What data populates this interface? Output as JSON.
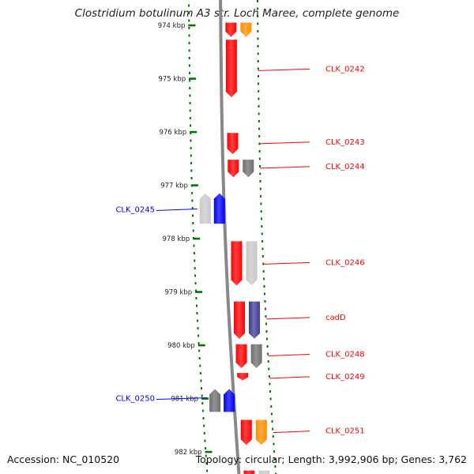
{
  "title": "Clostridium botulinum A3 str. Loch Maree, complete genome",
  "footer": {
    "accession": "Accession: NC_010520",
    "summary": "Topology: circular; Length: 3,992,906 bp; Genes: 3,762"
  },
  "colors": {
    "red": "#ff0000",
    "orange": "#ff8c00",
    "gray": "#6e6e6e",
    "light_gray": "#c8c8c8",
    "blue": "#0000ff",
    "navy": "#3c3c96",
    "tick_green": "#007700",
    "backbone": "#888888"
  },
  "view": {
    "start_kbp": 973.95,
    "end_kbp": 982.45
  },
  "ticks": [
    {
      "kbp": 974,
      "label": "974 kbp"
    },
    {
      "kbp": 975,
      "label": "975 kbp"
    },
    {
      "kbp": 976,
      "label": "976 kbp"
    },
    {
      "kbp": 977,
      "label": "977 kbp"
    },
    {
      "kbp": 978,
      "label": "978 kbp"
    },
    {
      "kbp": 979,
      "label": "979 kbp"
    },
    {
      "kbp": 980,
      "label": "980 kbp"
    },
    {
      "kbp": 981,
      "label": "981 kbp"
    },
    {
      "kbp": 982,
      "label": "982 kbp"
    }
  ],
  "features": [
    {
      "track": "fwd_inner",
      "start": 973.95,
      "end": 974.22,
      "color": "red"
    },
    {
      "track": "fwd_outer",
      "start": 973.95,
      "end": 974.22,
      "color": "orange"
    },
    {
      "track": "fwd_inner",
      "start": 974.27,
      "end": 975.35,
      "color": "red"
    },
    {
      "track": "fwd_inner",
      "start": 976.02,
      "end": 976.42,
      "color": "red"
    },
    {
      "track": "fwd_inner",
      "start": 976.52,
      "end": 976.85,
      "color": "red"
    },
    {
      "track": "fwd_outer",
      "start": 976.52,
      "end": 976.85,
      "color": "gray"
    },
    {
      "track": "rev_outer",
      "start": 977.15,
      "end": 977.72,
      "color": "light_gray"
    },
    {
      "track": "rev_inner",
      "start": 977.15,
      "end": 977.72,
      "color": "blue"
    },
    {
      "track": "fwd_inner",
      "start": 978.05,
      "end": 978.88,
      "color": "red"
    },
    {
      "track": "fwd_outer",
      "start": 978.05,
      "end": 978.88,
      "color": "light_gray"
    },
    {
      "track": "fwd_inner",
      "start": 979.18,
      "end": 979.88,
      "color": "red"
    },
    {
      "track": "fwd_outer",
      "start": 979.18,
      "end": 979.88,
      "color": "navy"
    },
    {
      "track": "fwd_inner",
      "start": 979.98,
      "end": 980.43,
      "color": "red"
    },
    {
      "track": "fwd_outer",
      "start": 979.98,
      "end": 980.43,
      "color": "gray"
    },
    {
      "track": "fwd_inner",
      "start": 980.52,
      "end": 980.66,
      "color": "red"
    },
    {
      "track": "rev_outer",
      "start": 980.82,
      "end": 981.25,
      "color": "gray"
    },
    {
      "track": "rev_inner",
      "start": 980.82,
      "end": 981.25,
      "color": "blue"
    },
    {
      "track": "fwd_inner",
      "start": 981.4,
      "end": 981.87,
      "color": "red"
    },
    {
      "track": "fwd_outer",
      "start": 981.4,
      "end": 981.87,
      "color": "orange"
    },
    {
      "track": "fwd_inner",
      "start": 982.35,
      "end": 982.45,
      "color": "red"
    },
    {
      "track": "fwd_outer",
      "start": 982.35,
      "end": 982.45,
      "color": "light_gray"
    }
  ],
  "gene_labels": [
    {
      "text": "CLK_0242",
      "kbp": 974.82,
      "side": "right",
      "color": "red"
    },
    {
      "text": "CLK_0243",
      "kbp": 976.19,
      "side": "right",
      "color": "red"
    },
    {
      "text": "CLK_0244",
      "kbp": 976.65,
      "side": "right",
      "color": "red"
    },
    {
      "text": "CLK_0245",
      "kbp": 977.46,
      "side": "left",
      "color": "blue"
    },
    {
      "text": "CLK_0246",
      "kbp": 978.45,
      "side": "right",
      "color": "red"
    },
    {
      "text": "cadD",
      "kbp": 979.48,
      "side": "right",
      "color": "red"
    },
    {
      "text": "CLK_0248",
      "kbp": 980.17,
      "side": "right",
      "color": "red"
    },
    {
      "text": "CLK_0249",
      "kbp": 980.59,
      "side": "right",
      "color": "red"
    },
    {
      "text": "CLK_0250",
      "kbp": 981.0,
      "side": "left",
      "color": "blue"
    },
    {
      "text": "CLK_0251",
      "kbp": 981.61,
      "side": "right",
      "color": "red"
    }
  ]
}
